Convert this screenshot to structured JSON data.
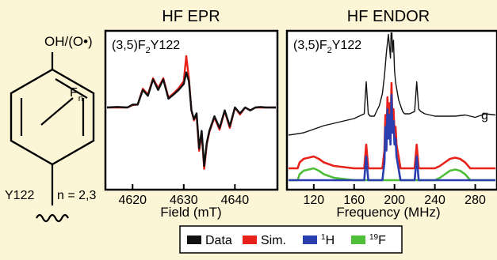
{
  "background": "#fdf6d6",
  "colors": {
    "data": "#111111",
    "sim": "#e8221b",
    "h1": "#2a3faf",
    "f19": "#4fbf3a"
  },
  "structure": {
    "top_label": "OH/(O•)",
    "f_label": "F",
    "f_subscript": "n",
    "residue_label": "Y122",
    "n_label": "n = 2,3"
  },
  "chart_data": [
    {
      "type": "line",
      "title": "HF EPR",
      "inset_label": {
        "prefix": "(3,5)F",
        "sub": "2",
        "suffix": "Y122"
      },
      "xlabel": "Field (mT)",
      "ylabel": "",
      "xlim": [
        4615,
        4648
      ],
      "x_ticks": [
        "4620",
        "4630",
        "4640"
      ],
      "x_tick_values": [
        4620,
        4630,
        4640
      ],
      "series": [
        {
          "name": "Data",
          "color": "#111111",
          "x": [
            4615,
            4617,
            4619,
            4620,
            4621,
            4622,
            4623,
            4624,
            4625,
            4626,
            4627,
            4628,
            4629,
            4630,
            4630.5,
            4631,
            4631.5,
            4632,
            4632.5,
            4633,
            4633.5,
            4634,
            4634.5,
            4635,
            4636,
            4637,
            4638,
            4639,
            4640,
            4641,
            4642,
            4643,
            4644,
            4645,
            4646,
            4648
          ],
          "y": [
            0.0,
            0.01,
            0.0,
            0.05,
            0.05,
            0.3,
            0.2,
            0.48,
            0.3,
            0.48,
            0.15,
            0.22,
            0.3,
            0.4,
            0.6,
            0.45,
            -0.05,
            -0.2,
            -0.1,
            -0.7,
            -0.4,
            -1.0,
            -0.6,
            -0.4,
            -0.15,
            -0.35,
            -0.05,
            -0.32,
            0.0,
            -0.1,
            0.0,
            -0.05,
            0.0,
            0.01,
            0.0,
            0.0
          ]
        },
        {
          "name": "Sim.",
          "color": "#e8221b",
          "x": [
            4615,
            4617,
            4619,
            4620,
            4621,
            4622,
            4623,
            4624,
            4625,
            4626,
            4627,
            4628,
            4629,
            4630,
            4630.5,
            4631,
            4631.5,
            4632,
            4632.5,
            4633,
            4633.5,
            4634,
            4634.5,
            4635,
            4636,
            4637,
            4638,
            4639,
            4640,
            4641,
            4642,
            4643,
            4644,
            4645,
            4646,
            4648
          ],
          "y": [
            0.0,
            0.0,
            0.0,
            0.04,
            0.05,
            0.32,
            0.22,
            0.5,
            0.33,
            0.5,
            0.17,
            0.24,
            0.33,
            0.45,
            0.88,
            0.5,
            -0.05,
            -0.22,
            -0.12,
            -0.74,
            -0.44,
            -1.05,
            -0.63,
            -0.42,
            -0.17,
            -0.38,
            -0.06,
            -0.35,
            0.0,
            -0.12,
            0.0,
            -0.05,
            0.0,
            0.0,
            0.0,
            0.0
          ]
        }
      ]
    },
    {
      "type": "line",
      "title": "HF ENDOR",
      "inset_label": {
        "prefix": "(3,5)F",
        "sub": "2",
        "suffix": "Y122"
      },
      "side_label": "g",
      "xlabel": "Frequency (MHz)",
      "ylabel": "",
      "xlim": [
        95,
        300
      ],
      "x_ticks": [
        "120",
        "160",
        "200",
        "240",
        "280"
      ],
      "x_tick_values": [
        120,
        160,
        200,
        240,
        280
      ],
      "data_trace": {
        "name": "Data",
        "color": "#111111",
        "offset": 0.38,
        "x": [
          95,
          110,
          120,
          130,
          140,
          150,
          160,
          165,
          170,
          172,
          174,
          176,
          180,
          185,
          188,
          190,
          192,
          194,
          196,
          197,
          198,
          199,
          200,
          201,
          202,
          204,
          206,
          208,
          210,
          215,
          220,
          222,
          224,
          226,
          230,
          240,
          250,
          260,
          270,
          280,
          290,
          300
        ],
        "y": [
          0.0,
          0.02,
          0.05,
          0.08,
          0.1,
          0.12,
          0.14,
          0.16,
          0.18,
          0.45,
          0.18,
          0.16,
          0.16,
          0.25,
          0.35,
          0.5,
          0.7,
          0.85,
          0.65,
          1.0,
          0.7,
          0.8,
          0.55,
          0.45,
          0.4,
          0.3,
          0.25,
          0.2,
          0.18,
          0.18,
          0.2,
          0.45,
          0.22,
          0.2,
          0.18,
          0.16,
          0.16,
          0.16,
          0.17,
          0.15,
          0.18,
          0.17
        ]
      },
      "sim_trace": {
        "name": "Sim.",
        "color": "#e8221b",
        "offset": 0.1,
        "x": [
          95,
          100,
          104,
          106,
          110,
          120,
          125,
          130,
          140,
          150,
          160,
          166,
          168,
          170,
          172,
          174,
          176,
          180,
          186,
          188,
          190,
          191,
          192,
          193,
          194,
          195,
          196,
          197,
          198,
          199,
          200,
          201,
          202,
          203,
          204,
          205,
          206,
          207,
          208,
          210,
          212,
          216,
          218,
          220,
          222,
          224,
          226,
          230,
          240,
          245,
          250,
          255,
          260,
          265,
          270,
          275,
          280,
          300
        ],
        "y": [
          0.0,
          0.0,
          0.0,
          0.05,
          0.08,
          0.1,
          0.08,
          0.05,
          0.02,
          0.01,
          0.0,
          0.0,
          0.0,
          0.0,
          0.2,
          0.0,
          0.0,
          0.0,
          0.0,
          0.0,
          0.15,
          0.45,
          0.25,
          0.6,
          0.35,
          0.55,
          0.3,
          0.72,
          0.4,
          0.5,
          0.3,
          0.35,
          0.2,
          0.15,
          0.1,
          0.05,
          0.0,
          0.0,
          0.0,
          0.0,
          0.0,
          0.0,
          0.0,
          0.0,
          0.2,
          0.0,
          0.0,
          0.0,
          0.0,
          0.02,
          0.05,
          0.08,
          0.09,
          0.08,
          0.05,
          0.0,
          0.0,
          0.0
        ]
      },
      "h_trace": {
        "name": "1H",
        "color": "#2a3faf",
        "offset": 0.0,
        "x": [
          95,
          166,
          168,
          170,
          172,
          174,
          176,
          186,
          188,
          190,
          191,
          192,
          193,
          194,
          195,
          196,
          197,
          198,
          199,
          200,
          201,
          202,
          203,
          204,
          205,
          206,
          207,
          208,
          216,
          218,
          220,
          222,
          224,
          226,
          300
        ],
        "y": [
          0.0,
          0.0,
          0.0,
          0.0,
          0.2,
          0.0,
          0.0,
          0.0,
          0.0,
          0.15,
          0.45,
          0.25,
          0.6,
          0.35,
          0.55,
          0.3,
          0.72,
          0.4,
          0.5,
          0.3,
          0.35,
          0.2,
          0.15,
          0.1,
          0.05,
          0.0,
          0.0,
          0.0,
          0.0,
          0.0,
          0.0,
          0.2,
          0.0,
          0.0,
          0.0
        ]
      },
      "f_trace": {
        "name": "19F",
        "color": "#4fbf3a",
        "offset": 0.0,
        "x": [
          95,
          100,
          104,
          106,
          110,
          120,
          125,
          130,
          140,
          150,
          160,
          170,
          200,
          230,
          240,
          245,
          250,
          255,
          260,
          265,
          270,
          275,
          280,
          300
        ],
        "y": [
          0.0,
          0.0,
          0.0,
          0.05,
          0.08,
          0.1,
          0.08,
          0.05,
          0.02,
          0.01,
          0.0,
          0.0,
          0.0,
          0.0,
          0.0,
          0.02,
          0.05,
          0.08,
          0.09,
          0.08,
          0.05,
          0.0,
          0.0,
          0.0
        ]
      }
    }
  ],
  "legend": [
    {
      "label": "Data",
      "sup": "",
      "color": "#111111"
    },
    {
      "label": "Sim.",
      "sup": "",
      "color": "#e8221b"
    },
    {
      "label": "H",
      "sup": "1",
      "color": "#2a3faf"
    },
    {
      "label": "F",
      "sup": "19",
      "color": "#4fbf3a"
    }
  ]
}
